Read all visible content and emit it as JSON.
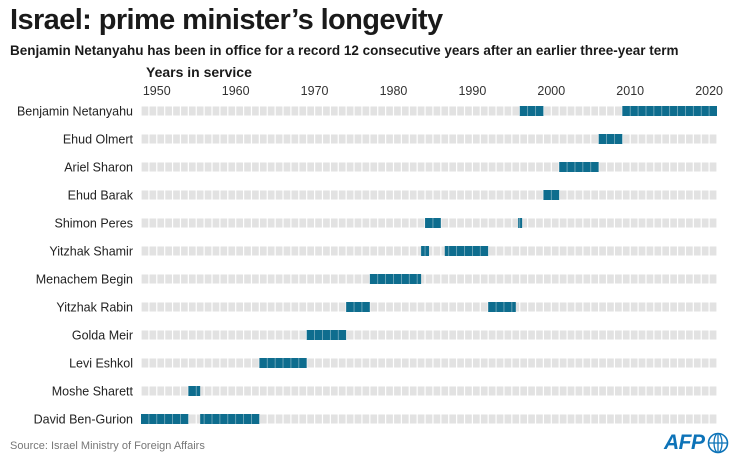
{
  "header": {
    "title": "Israel: prime minister’s longevity",
    "subtitle": "Benjamin Netanyahu has been in office for a record 12 consecutive years after an earlier three-year term"
  },
  "footer": {
    "source": "Source: Israel Ministry of Foreign Affairs",
    "logo_text": "AFP"
  },
  "colors": {
    "term": "#0e6d8e",
    "background_cell": "#e2e2e2"
  },
  "chart_data": {
    "type": "timeline",
    "title": "Israel: prime minister’s longevity",
    "xlabel": "Years in service",
    "xlim": [
      1948,
      2021
    ],
    "xticks": [
      1950,
      1960,
      1970,
      1980,
      1990,
      2000,
      2010,
      2020
    ],
    "series": [
      {
        "name": "Benjamin Netanyahu",
        "terms": [
          [
            1996,
            1999
          ],
          [
            2009,
            2021
          ]
        ]
      },
      {
        "name": "Ehud Olmert",
        "terms": [
          [
            2006,
            2009
          ]
        ]
      },
      {
        "name": "Ariel Sharon",
        "terms": [
          [
            2001,
            2006
          ]
        ]
      },
      {
        "name": "Ehud Barak",
        "terms": [
          [
            1999,
            2001
          ]
        ]
      },
      {
        "name": "Shimon Peres",
        "terms": [
          [
            1984,
            1986
          ],
          [
            1995.8,
            1996.3
          ]
        ]
      },
      {
        "name": "Yitzhak Shamir",
        "terms": [
          [
            1983.5,
            1984.5
          ],
          [
            1986.5,
            1992
          ]
        ]
      },
      {
        "name": "Menachem Begin",
        "terms": [
          [
            1977,
            1983.5
          ]
        ]
      },
      {
        "name": "Yitzhak Rabin",
        "terms": [
          [
            1974,
            1977
          ],
          [
            1992,
            1995.5
          ]
        ]
      },
      {
        "name": "Golda Meir",
        "terms": [
          [
            1969,
            1974
          ]
        ]
      },
      {
        "name": "Levi Eshkol",
        "terms": [
          [
            1963,
            1969
          ]
        ]
      },
      {
        "name": "Moshe Sharett",
        "terms": [
          [
            1954,
            1955.5
          ]
        ]
      },
      {
        "name": "David Ben-Gurion",
        "terms": [
          [
            1948,
            1954
          ],
          [
            1955.5,
            1963
          ]
        ]
      }
    ]
  }
}
